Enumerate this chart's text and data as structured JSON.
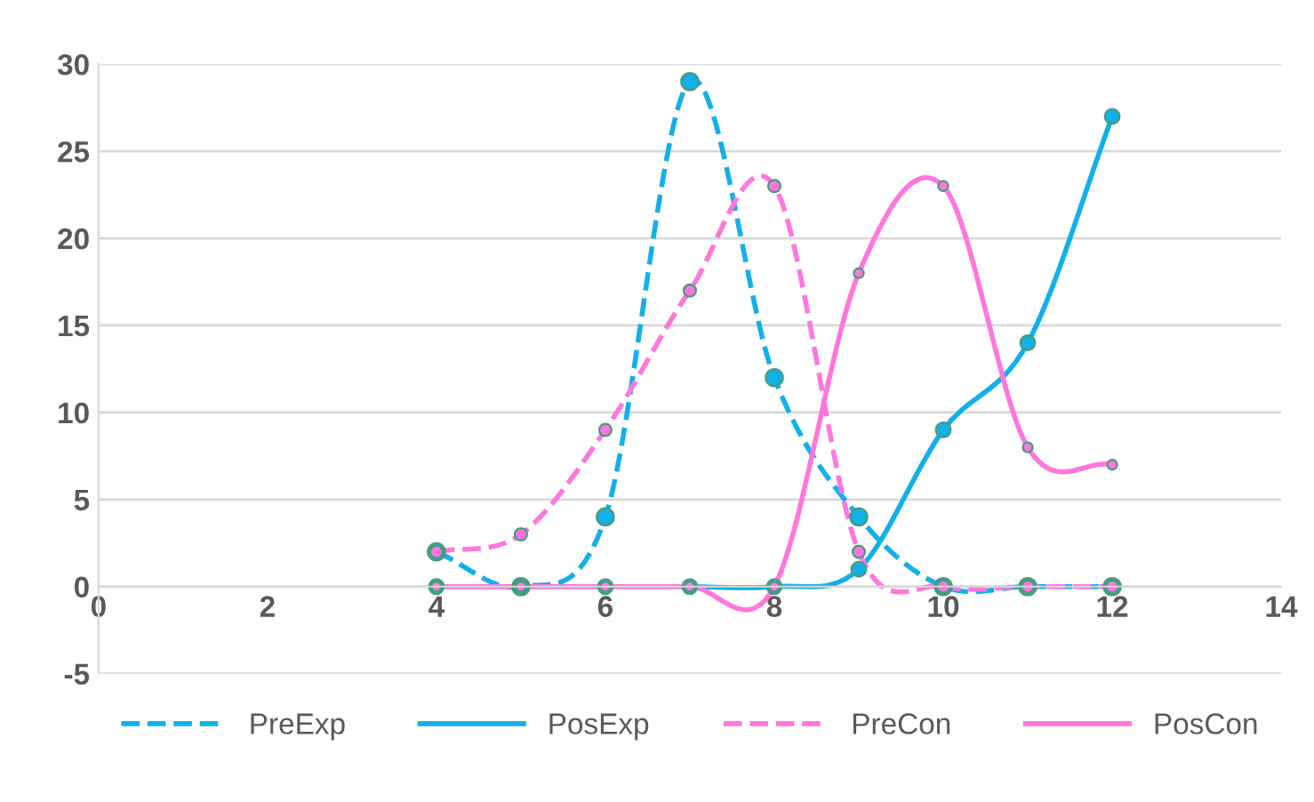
{
  "chart_data": {
    "type": "line",
    "x": [
      4,
      5,
      6,
      7,
      8,
      9,
      10,
      11,
      12
    ],
    "series": [
      {
        "name": "PreExp",
        "color": "#12b0e8",
        "line_style": "dashed",
        "values": [
          2,
          0,
          4,
          29,
          12,
          4,
          0,
          0,
          0
        ]
      },
      {
        "name": "PosExp",
        "color": "#12b0e8",
        "line_style": "solid",
        "values": [
          0,
          0,
          0,
          0,
          0,
          1,
          9,
          14,
          27
        ]
      },
      {
        "name": "PreCon",
        "color": "#ff77dd",
        "line_style": "dashed",
        "values": [
          2,
          3,
          9,
          17,
          23,
          2,
          0,
          0,
          0
        ]
      },
      {
        "name": "PosCon",
        "color": "#ff77dd",
        "line_style": "solid",
        "values": [
          0,
          0,
          0,
          0,
          0,
          18,
          23,
          8,
          7
        ]
      }
    ],
    "xlim": [
      0,
      14
    ],
    "xticks": [
      0,
      2,
      4,
      6,
      8,
      10,
      12,
      14
    ],
    "ylim": [
      -5,
      30
    ],
    "yticks": [
      -5,
      0,
      5,
      10,
      15,
      20,
      25,
      30
    ],
    "grid": "y",
    "legend": "bottom",
    "marker": "circle"
  }
}
